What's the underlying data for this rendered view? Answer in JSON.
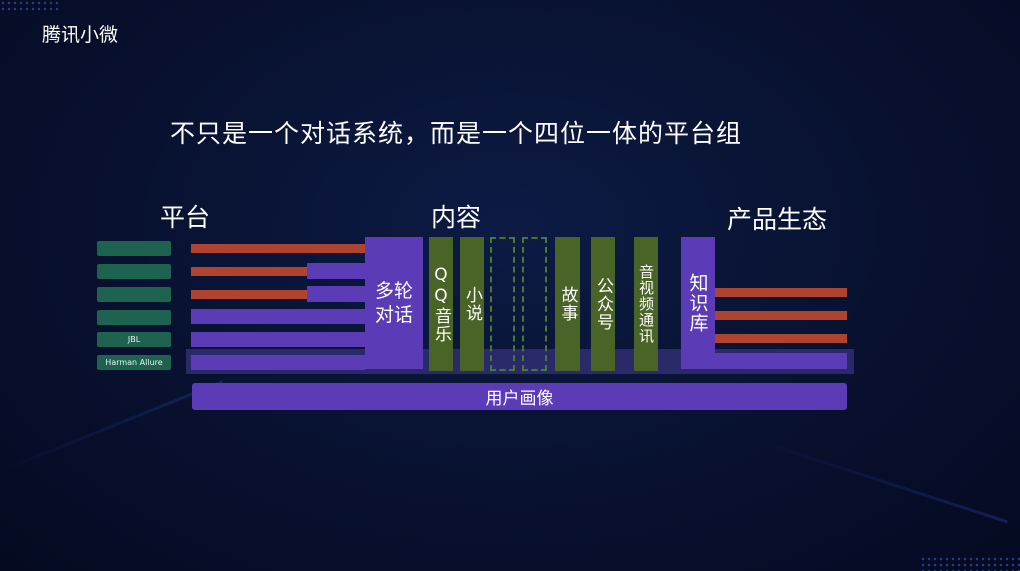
{
  "brand": "腾讯小微",
  "headline": "不只是一个对话系统，而是一个四位一体的平台组",
  "sections": {
    "platform": "平台",
    "content": "内容",
    "ecosystem": "产品生态"
  },
  "devices": [
    {
      "label": ""
    },
    {
      "label": ""
    },
    {
      "label": ""
    },
    {
      "label": ""
    },
    {
      "label": "JBL"
    },
    {
      "label": "Harman Allure"
    }
  ],
  "multi_turn": "多轮对话",
  "content_items": [
    "QQ音乐",
    "小说",
    "",
    "",
    "故事",
    "公众号",
    "音视频通讯"
  ],
  "knowledge_base": "知识库",
  "user_profile": "用户画像",
  "colors": {
    "background": "#08112f",
    "purple": "#5c3bb6",
    "green": "#4a6327",
    "red": "#b04330",
    "device": "#1e6350"
  }
}
